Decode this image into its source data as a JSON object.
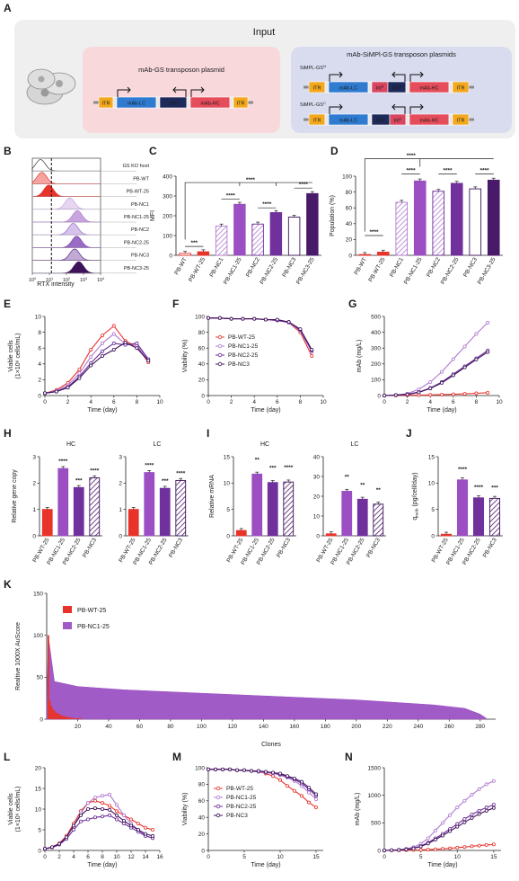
{
  "figure": {
    "panel_letters": [
      "A",
      "B",
      "C",
      "D",
      "E",
      "F",
      "G",
      "H",
      "I",
      "J",
      "K",
      "L",
      "M",
      "N"
    ],
    "colors": {
      "WT": "#e8332b",
      "NC1": "#b17ad0",
      "NC2": "#6a2d99",
      "NC3": "#3d1258",
      "NC1_25": "#9b4fc2",
      "NC2_25": "#70319d",
      "NC3_25": "#4a1a6a",
      "hatch": "#6a3a8a",
      "input_bg": "#efefef",
      "left_box": "#f9d8dc",
      "right_box": "#d9dcef",
      "itr": "#f3a81d",
      "lc": "#2f7bd0",
      "gs": "#1e2a5a",
      "hc": "#e54d5a",
      "int": "#d84660"
    }
  },
  "panelA": {
    "title": "Input",
    "left_title": "mAb-GS transposon plasmid",
    "right_title": "mAb-SiMPl-GS transposon plasmids",
    "n_label": "SiMPL-GS",
    "n_sup": "N",
    "c_label": "SiMPL-GS",
    "c_sup": "C",
    "elements": {
      "itr": "ITR",
      "lc": "mAb-LC",
      "gs": "GS",
      "hc": "mAb-HC",
      "int": "Int",
      "sup_n": "N",
      "sup_c": "C"
    }
  },
  "panelB": {
    "rows": [
      "GS KO host",
      "PB-WT",
      "PB-WT-25",
      "PB-NC1",
      "PB-NC1-25",
      "PB-NC2",
      "PB-NC2-25",
      "PB-NC3",
      "PB-NC3-25"
    ],
    "xlabel": "RTX intensity",
    "xticks": [
      "10",
      "10",
      "10",
      "10",
      "10"
    ],
    "xtick_exp": [
      "0",
      "1",
      "2",
      "3",
      "4"
    ]
  },
  "categories8": [
    "PB-WT",
    "PB-WT-25",
    "PB-NC1",
    "PB-NC1-25",
    "PB-NC2",
    "PB-NC2-25",
    "PB-NC3",
    "PB-NC3-25"
  ],
  "categories4": [
    "PB-WT-25",
    "PB-NC1-25",
    "PB-NC2-25",
    "PB-NC3"
  ],
  "sig": {
    "s3": "***",
    "s4": "****",
    "s2": "**"
  },
  "series4": [
    "PB-WT-25",
    "PB-NC1-25",
    "PB-NC2-25",
    "PB-NC3"
  ],
  "chart_data": [
    {
      "panel": "C",
      "type": "bar",
      "categories": [
        "PB-WT",
        "PB-WT-25",
        "PB-NC1",
        "PB-NC1-25",
        "PB-NC2",
        "PB-NC2-25",
        "PB-NC3",
        "PB-NC3-25"
      ],
      "values": [
        10,
        18,
        148,
        258,
        158,
        216,
        193,
        312
      ],
      "ylabel": "MFI",
      "ylim": [
        0,
        400
      ],
      "yticks": [
        0,
        100,
        200,
        300,
        400
      ]
    },
    {
      "panel": "D",
      "type": "bar",
      "categories": [
        "PB-WT",
        "PB-WT-25",
        "PB-NC1",
        "PB-NC1-25",
        "PB-NC2",
        "PB-NC2-25",
        "PB-NC3",
        "PB-NC3-25"
      ],
      "values": [
        1,
        4,
        67,
        94,
        81,
        91,
        84,
        95
      ],
      "ylabel": "Population (%)",
      "ylim": [
        0,
        100
      ],
      "yticks": [
        0,
        20,
        40,
        60,
        80,
        100
      ]
    },
    {
      "panel": "E",
      "type": "line",
      "xlabel": "Time (day)",
      "ylabel": "Viable cells",
      "ylabel2": "(1×10⁶ cells/mL)",
      "xlim": [
        0,
        10
      ],
      "ylim": [
        0,
        10
      ],
      "xticks": [
        0,
        2,
        4,
        6,
        8,
        10
      ],
      "yticks": [
        0,
        2,
        4,
        6,
        8,
        10
      ],
      "x": [
        0,
        1,
        2,
        3,
        4,
        5,
        6,
        7,
        8,
        9
      ],
      "series": [
        {
          "name": "PB-WT-25",
          "values": [
            0.3,
            0.7,
            1.6,
            3.3,
            5.8,
            7.6,
            8.8,
            6.9,
            6.2,
            4.2
          ]
        },
        {
          "name": "PB-NC1-25",
          "values": [
            0.3,
            0.6,
            1.3,
            2.8,
            4.9,
            6.6,
            7.8,
            6.5,
            6.3,
            4.5
          ]
        },
        {
          "name": "PB-NC2-25",
          "values": [
            0.3,
            0.5,
            1.1,
            2.4,
            4.1,
            5.6,
            6.6,
            6.4,
            6.6,
            4.6
          ]
        },
        {
          "name": "PB-NC3",
          "values": [
            0.3,
            0.5,
            1.0,
            2.2,
            3.8,
            5.0,
            5.8,
            6.7,
            6.0,
            4.4
          ]
        }
      ]
    },
    {
      "panel": "F",
      "type": "line",
      "xlabel": "Time (day)",
      "ylabel": "Viability (%)",
      "xlim": [
        0,
        10
      ],
      "ylim": [
        0,
        100
      ],
      "xticks": [
        0,
        2,
        4,
        6,
        8,
        10
      ],
      "yticks": [
        0,
        20,
        40,
        60,
        80,
        100
      ],
      "x": [
        0,
        1,
        2,
        3,
        4,
        5,
        6,
        7,
        8,
        9
      ],
      "series": [
        {
          "name": "PB-WT-25",
          "values": [
            98,
            98,
            97,
            97,
            97,
            96,
            95,
            92,
            80,
            50
          ]
        },
        {
          "name": "PB-NC1-25",
          "values": [
            98,
            98,
            97,
            97,
            97,
            96,
            95,
            92,
            82,
            55
          ]
        },
        {
          "name": "PB-NC2-25",
          "values": [
            98,
            98,
            97,
            97,
            97,
            96,
            95,
            93,
            83,
            57
          ]
        },
        {
          "name": "PB-NC3",
          "values": [
            98,
            98,
            97,
            97,
            97,
            96,
            96,
            93,
            84,
            58
          ]
        }
      ]
    },
    {
      "panel": "G",
      "type": "line",
      "xlabel": "Time (day)",
      "ylabel": "mAb (mg/L)",
      "xlim": [
        0,
        10
      ],
      "ylim": [
        0,
        500
      ],
      "xticks": [
        0,
        2,
        4,
        6,
        8,
        10
      ],
      "yticks": [
        0,
        100,
        200,
        300,
        400,
        500
      ],
      "x": [
        0,
        1,
        2,
        3,
        4,
        5,
        6,
        7,
        8,
        9
      ],
      "series": [
        {
          "name": "PB-WT-25",
          "values": [
            0,
            1,
            2,
            3,
            4,
            6,
            8,
            11,
            14,
            18
          ]
        },
        {
          "name": "PB-NC1-25",
          "values": [
            0,
            4,
            12,
            40,
            85,
            150,
            230,
            310,
            390,
            460
          ]
        },
        {
          "name": "PB-NC2-25",
          "values": [
            0,
            3,
            8,
            22,
            48,
            85,
            135,
            185,
            235,
            285
          ]
        },
        {
          "name": "PB-NC3",
          "values": [
            0,
            3,
            7,
            20,
            45,
            80,
            128,
            178,
            228,
            275
          ]
        }
      ]
    },
    {
      "panel": "H-HC",
      "type": "bar",
      "title": "HC",
      "categories": [
        "PB-WT-25",
        "PB-NC1-25",
        "PB-NC2-25",
        "PB-NC3"
      ],
      "values": [
        1.0,
        2.55,
        1.83,
        2.2
      ],
      "ylabel": "Relative gene copy",
      "ylim": [
        0,
        3
      ],
      "yticks": [
        0,
        1,
        2,
        3
      ]
    },
    {
      "panel": "H-LC",
      "type": "bar",
      "title": "LC",
      "categories": [
        "PB-WT-25",
        "PB-NC1-25",
        "PB-NC2-25",
        "PB-NC3"
      ],
      "values": [
        1.0,
        2.4,
        1.8,
        2.1
      ],
      "ylim": [
        0,
        3
      ],
      "yticks": [
        0,
        1,
        2,
        3
      ]
    },
    {
      "panel": "I-HC",
      "type": "bar",
      "title": "HC",
      "categories": [
        "PB-WT-25",
        "PB-NC1-25",
        "PB-NC2-25",
        "PB-NC3"
      ],
      "values": [
        1.0,
        11.7,
        10.1,
        10.2
      ],
      "ylabel": "Relative mRNA",
      "ylim": [
        0,
        15
      ],
      "yticks": [
        0,
        5,
        10,
        15
      ]
    },
    {
      "panel": "I-LC",
      "type": "bar",
      "title": "LC",
      "categories": [
        "PB-WT-25",
        "PB-NC1-25",
        "PB-NC2-25",
        "PB-NC3"
      ],
      "values": [
        1.0,
        22.5,
        18.5,
        16.0
      ],
      "ylim": [
        0,
        40
      ],
      "yticks": [
        0,
        10,
        20,
        30,
        40
      ]
    },
    {
      "panel": "J",
      "type": "bar",
      "categories": [
        "PB-WT-25",
        "PB-NC1-25",
        "PB-NC2-25",
        "PB-NC3"
      ],
      "values": [
        0.3,
        10.6,
        7.2,
        7.1
      ],
      "ylabel": "q",
      "ylabel_sub": "mAb",
      "ylabel_tail": " (pg/cell/day)",
      "ylim": [
        0,
        15
      ],
      "yticks": [
        0,
        5,
        10,
        15
      ]
    },
    {
      "panel": "K",
      "type": "bar",
      "xlabel": "Clones",
      "ylabel": "Realtive 1000X AuScore",
      "ylim": [
        0,
        150
      ],
      "yticks": [
        0,
        50,
        100,
        150
      ],
      "xlim": [
        0,
        290
      ],
      "xticks": [
        20,
        40,
        60,
        80,
        100,
        120,
        140,
        160,
        180,
        200,
        220,
        240,
        260,
        280
      ],
      "series": [
        {
          "name": "PB-WT-25",
          "values": [
            100,
            22,
            16,
            12,
            10,
            8,
            7,
            6,
            5,
            4,
            4,
            3,
            3,
            2,
            2,
            2,
            1,
            1,
            1,
            1,
            1,
            1
          ]
        },
        {
          "name": "PB-NC1-25",
          "values": [
            100,
            45,
            42,
            40,
            38,
            37,
            36,
            35,
            34,
            33,
            32,
            31,
            30,
            29,
            28,
            27,
            26,
            25,
            24,
            23,
            22,
            21,
            20,
            19,
            18,
            17,
            16,
            15,
            14,
            13,
            12,
            11,
            10,
            9,
            8,
            7,
            6,
            5,
            4,
            3,
            2
          ]
        }
      ],
      "nc1_profile_x": [
        1,
        5,
        20,
        50,
        100,
        150,
        200,
        250,
        270,
        280,
        284
      ],
      "nc1_profile_y": [
        100,
        45,
        39,
        35,
        31,
        27,
        23,
        17,
        13,
        6,
        1
      ]
    },
    {
      "panel": "L",
      "type": "line",
      "xlabel": "Time (day)",
      "ylabel": "Viable cells",
      "ylabel2": "(1×10⁶ cells/mL)",
      "xlim": [
        0,
        16
      ],
      "ylim": [
        0,
        20
      ],
      "xticks": [
        0,
        2,
        4,
        6,
        8,
        10,
        12,
        14,
        16
      ],
      "yticks": [
        0,
        5,
        10,
        15,
        20
      ],
      "x": [
        0,
        1,
        2,
        3,
        4,
        5,
        6,
        7,
        8,
        9,
        10,
        11,
        12,
        13,
        14,
        15
      ],
      "series": [
        {
          "name": "PB-WT-25",
          "values": [
            0.4,
            0.8,
            1.7,
            3.5,
            6.5,
            9.5,
            11.5,
            12.0,
            11.5,
            10.8,
            9.5,
            8.5,
            7.5,
            6.5,
            5.5,
            5.0
          ]
        },
        {
          "name": "PB-NC1-25",
          "values": [
            0.4,
            0.8,
            1.6,
            3.2,
            6.0,
            9.0,
            11.5,
            12.8,
            13.2,
            13.5,
            11.0,
            8.5,
            6.5,
            5.0,
            3.5,
            3.0
          ]
        },
        {
          "name": "PB-NC2-25",
          "values": [
            0.4,
            0.7,
            1.4,
            2.8,
            5.0,
            7.0,
            7.5,
            8.0,
            8.2,
            8.5,
            7.5,
            6.5,
            5.5,
            4.5,
            3.5,
            3.0
          ]
        },
        {
          "name": "PB-NC3",
          "values": [
            0.4,
            0.8,
            1.6,
            3.2,
            6.0,
            8.5,
            10.0,
            10.2,
            10.0,
            9.8,
            8.5,
            7.2,
            6.0,
            5.0,
            4.0,
            3.5
          ]
        }
      ]
    },
    {
      "panel": "M",
      "type": "line",
      "xlabel": "Time (day)",
      "ylabel": "Viability (%)",
      "xlim": [
        0,
        16
      ],
      "ylim": [
        0,
        100
      ],
      "xticks": [
        0,
        5,
        10,
        15
      ],
      "yticks": [
        0,
        20,
        40,
        60,
        80,
        100
      ],
      "x": [
        0,
        1,
        2,
        3,
        4,
        5,
        6,
        7,
        8,
        9,
        10,
        11,
        12,
        13,
        14,
        15
      ],
      "series": [
        {
          "name": "PB-WT-25",
          "values": [
            98,
            98,
            98,
            98,
            97,
            97,
            96,
            95,
            93,
            90,
            85,
            78,
            72,
            66,
            58,
            52
          ]
        },
        {
          "name": "PB-NC1-25",
          "values": [
            98,
            98,
            98,
            98,
            97,
            97,
            96,
            95,
            94,
            93,
            91,
            88,
            84,
            78,
            70,
            62
          ]
        },
        {
          "name": "PB-NC2-25",
          "values": [
            98,
            98,
            98,
            98,
            97,
            97,
            96,
            96,
            95,
            94,
            92,
            89,
            86,
            81,
            74,
            66
          ]
        },
        {
          "name": "PB-NC3",
          "values": [
            98,
            98,
            98,
            98,
            97,
            97,
            96,
            96,
            95,
            94,
            93,
            90,
            87,
            83,
            76,
            68
          ]
        }
      ]
    },
    {
      "panel": "N",
      "type": "line",
      "xlabel": "Time (day)",
      "ylabel": "mAb (mg/L)",
      "xlim": [
        0,
        16
      ],
      "ylim": [
        0,
        1500
      ],
      "xticks": [
        0,
        5,
        10,
        15
      ],
      "yticks": [
        0,
        500,
        1000,
        1500
      ],
      "x": [
        0,
        1,
        2,
        3,
        4,
        5,
        6,
        7,
        8,
        9,
        10,
        11,
        12,
        13,
        14,
        15
      ],
      "series": [
        {
          "name": "PB-WT-25",
          "values": [
            0,
            2,
            4,
            6,
            8,
            10,
            14,
            20,
            28,
            38,
            50,
            62,
            75,
            88,
            100,
            110
          ]
        },
        {
          "name": "PB-NC1-25",
          "values": [
            0,
            5,
            12,
            30,
            60,
            120,
            220,
            360,
            500,
            640,
            780,
            900,
            1010,
            1110,
            1200,
            1260
          ]
        },
        {
          "name": "PB-NC2-25",
          "values": [
            0,
            4,
            10,
            20,
            40,
            80,
            140,
            220,
            300,
            390,
            480,
            570,
            650,
            720,
            780,
            830
          ]
        },
        {
          "name": "PB-NC3",
          "values": [
            0,
            4,
            9,
            18,
            36,
            72,
            125,
            195,
            270,
            350,
            430,
            510,
            590,
            660,
            720,
            770
          ]
        }
      ]
    }
  ]
}
